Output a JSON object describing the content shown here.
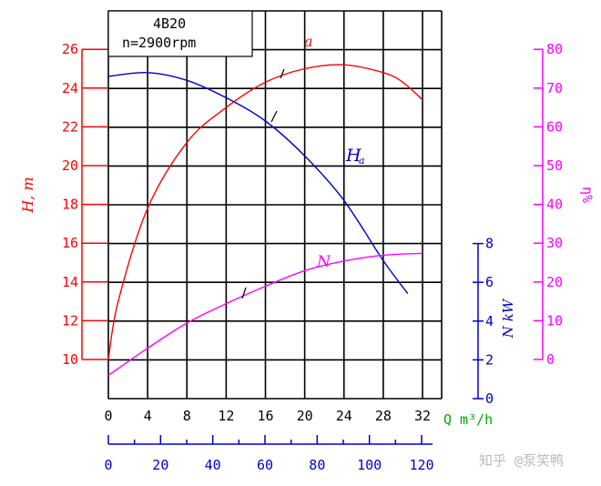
{
  "chart_data": {
    "type": "line",
    "title": "4B20",
    "subtitle": "n=2900rpm",
    "colors": {
      "head": "#ff0000",
      "efficiency_axis": "#ff00ff",
      "power": "#ff00ff",
      "head_curve": "#0000cc",
      "flow_m3s_axis": "#0000cc",
      "flow_m3h_axis": "#000000",
      "grid": "#000000"
    },
    "x_axis": {
      "label": "Q m³/h",
      "ticks": [
        "0",
        "4",
        "8",
        "12",
        "16",
        "20",
        "24",
        "28",
        "32"
      ],
      "range": [
        0,
        40
      ]
    },
    "x2_axis": {
      "ticks": [
        "0",
        "20",
        "40",
        "60",
        "80",
        "100",
        "120"
      ],
      "range": [
        0,
        120
      ]
    },
    "y_left": {
      "label": "H, m",
      "ticks": [
        "10",
        "12",
        "14",
        "16",
        "18",
        "20",
        "22",
        "24",
        "26"
      ],
      "range": [
        10,
        26
      ]
    },
    "y_right_outer": {
      "label": "η%",
      "ticks": [
        "0",
        "10",
        "20",
        "30",
        "40",
        "50",
        "60",
        "70",
        "80"
      ],
      "range": [
        0,
        80
      ]
    },
    "y_right_inner": {
      "label": "N kW",
      "ticks": [
        "0",
        "2",
        "4",
        "6",
        "8"
      ],
      "range": [
        0,
        8
      ]
    },
    "series": [
      {
        "name": "H",
        "axis": "y_left",
        "x": [
          0,
          4,
          8,
          12,
          16,
          20,
          24,
          28,
          30.5
        ],
        "values": [
          24.6,
          24.8,
          24.4,
          23.5,
          22.3,
          20.5,
          18.2,
          15.1,
          13.4
        ]
      },
      {
        "name": "η",
        "axis": "y_right_outer",
        "x": [
          0,
          1,
          4,
          8,
          12,
          16,
          20,
          24,
          28,
          30,
          32
        ],
        "values": [
          0,
          15,
          39,
          56,
          65,
          71.5,
          75,
          76,
          74,
          71.5,
          67
        ]
      },
      {
        "name": "N",
        "axis": "y_right_inner",
        "x": [
          0,
          4,
          8,
          12,
          16,
          20,
          24,
          28,
          32
        ],
        "values": [
          1.2,
          2.6,
          3.9,
          4.9,
          5.8,
          6.6,
          7.1,
          7.4,
          7.5
        ]
      }
    ],
    "curve_labels": {
      "efficiency": "a",
      "head": "H",
      "head_sub": "a",
      "power": "N"
    },
    "grid": true,
    "legend": "none"
  },
  "watermark": "知乎 @泵笑鸭"
}
